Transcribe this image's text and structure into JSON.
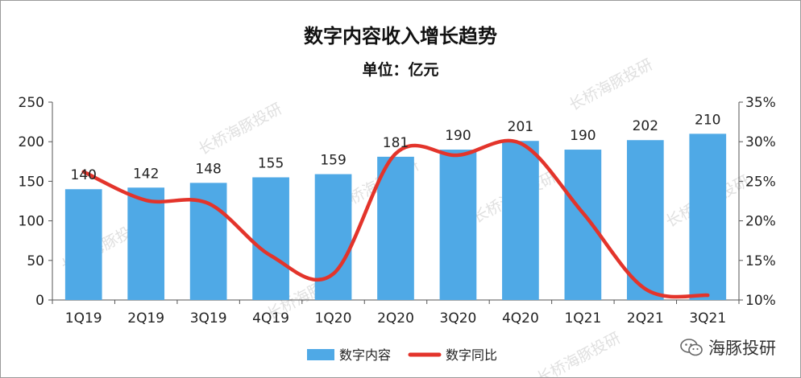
{
  "chart_data": {
    "type": "bar",
    "title": "数字内容收入增长趋势",
    "subtitle": "单位：亿元",
    "categories": [
      "1Q19",
      "2Q19",
      "3Q19",
      "4Q19",
      "1Q20",
      "2Q20",
      "3Q20",
      "4Q20",
      "1Q21",
      "2Q21",
      "3Q21"
    ],
    "series": [
      {
        "name": "数字内容",
        "type": "bar",
        "axis": "left",
        "color": "#4fa9e6",
        "values": [
          140,
          142,
          148,
          155,
          159,
          181,
          190,
          201,
          190,
          202,
          210
        ]
      },
      {
        "name": "数字同比",
        "type": "line",
        "axis": "right",
        "color": "#e3342b",
        "values": [
          0.262,
          0.226,
          0.222,
          0.156,
          0.133,
          0.285,
          0.283,
          0.298,
          0.21,
          0.114,
          0.106
        ]
      }
    ],
    "ylim_left": [
      0,
      250
    ],
    "yticks_left": [
      "0",
      "50",
      "100",
      "150",
      "200",
      "250"
    ],
    "ylim_right": [
      0.1,
      0.35
    ],
    "yticks_right": [
      "10%",
      "15%",
      "20%",
      "25%",
      "30%",
      "35%"
    ],
    "data_labels": [
      "140",
      "142",
      "148",
      "155",
      "159",
      "181",
      "190",
      "201",
      "190",
      "202",
      "210"
    ],
    "grid": false,
    "legend_position": "bottom"
  },
  "watermark": {
    "text": "长桥海豚投研"
  },
  "badge": {
    "icon": "wechat-icon",
    "text": "海豚投研"
  }
}
